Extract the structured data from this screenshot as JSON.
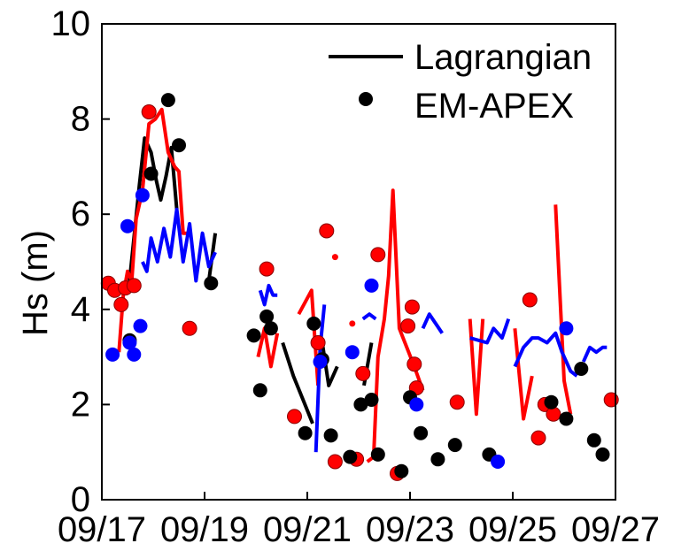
{
  "chart_data": {
    "type": "line",
    "title": "",
    "xlabel": "",
    "ylabel": "Hs (m)",
    "xlim": [
      "09/17",
      "09/27"
    ],
    "ylim": [
      0,
      10
    ],
    "x_ticks": [
      "09/17",
      "09/19",
      "09/21",
      "09/23",
      "09/25",
      "09/27"
    ],
    "y_ticks": [
      "0",
      "2",
      "4",
      "6",
      "8",
      "10"
    ],
    "grid": false,
    "legend_position": "top-right",
    "legend": [
      {
        "label": "Lagrangian",
        "marker": "line",
        "color": "#000000"
      },
      {
        "label": "EM-APEX",
        "marker": "dot",
        "color": "#000000"
      }
    ],
    "colors": {
      "black": "#000000",
      "red": "#ff0000",
      "blue": "#0000ff"
    },
    "lines": [
      {
        "color": "black",
        "points": [
          [
            "09/17 12:30",
            4.4
          ],
          [
            "09/17 17:30",
            6.6
          ],
          [
            "09/17 20:00",
            7.6
          ],
          [
            "09/17 23:00",
            7.3
          ],
          [
            "09/18 01:30",
            6.7
          ],
          [
            "09/18 03:30",
            6.3
          ],
          [
            "09/18 06:00",
            6.8
          ],
          [
            "09/18 08:30",
            7.4
          ],
          [
            "09/18 11:00",
            6.1
          ]
        ]
      },
      {
        "color": "black",
        "points": [
          [
            "09/19 02:00",
            4.6
          ],
          [
            "09/19 05:00",
            5.6
          ]
        ]
      },
      {
        "color": "black",
        "points": [
          [
            "09/20 12:30",
            3.3
          ],
          [
            "09/20 17:30",
            2.6
          ],
          [
            "09/20 22:00",
            2.1
          ],
          [
            "09/21 02:30",
            1.6
          ]
        ]
      },
      {
        "color": "black",
        "points": [
          [
            "09/21 07:00",
            3.3
          ],
          [
            "09/21 10:00",
            2.4
          ],
          [
            "09/21 14:00",
            2.8
          ]
        ]
      },
      {
        "color": "black",
        "points": [
          [
            "09/22 02:30",
            2.4
          ],
          [
            "09/22 06:00",
            3.3
          ]
        ]
      },
      {
        "color": "red",
        "points": [
          [
            "09/17 08:00",
            3.1
          ],
          [
            "09/17 10:00",
            4.3
          ],
          [
            "09/17 12:00",
            4.8
          ],
          [
            "09/17 14:00",
            4.6
          ],
          [
            "09/17 16:00",
            5.9
          ],
          [
            "09/17 19:00",
            6.5
          ],
          [
            "09/17 22:00",
            7.9
          ],
          [
            "09/18 01:00",
            8.0
          ],
          [
            "09/18 04:00",
            8.2
          ],
          [
            "09/18 07:00",
            7.3
          ],
          [
            "09/18 10:00",
            7.0
          ],
          [
            "09/18 12:00",
            6.9
          ],
          [
            "09/18 14:00",
            5.6
          ],
          [
            "09/18 17:00",
            5.6
          ]
        ]
      },
      {
        "color": "red",
        "points": [
          [
            "09/20 01:00",
            3.0
          ],
          [
            "09/20 04:00",
            3.6
          ],
          [
            "09/20 07:00",
            2.8
          ],
          [
            "09/20 10:00",
            3.5
          ]
        ]
      },
      {
        "color": "red",
        "points": [
          [
            "09/20 20:00",
            3.9
          ],
          [
            "09/21 02:00",
            4.4
          ],
          [
            "09/21 05:00",
            2.4
          ]
        ]
      },
      {
        "color": "red",
        "points": [
          [
            "09/22 04:00",
            0.8
          ],
          [
            "09/22 07:00",
            0.9
          ],
          [
            "09/22 09:00",
            3.0
          ],
          [
            "09/22 12:00",
            3.8
          ],
          [
            "09/22 14:00",
            4.7
          ],
          [
            "09/22 16:00",
            6.5
          ],
          [
            "09/22 19:00",
            3.6
          ],
          [
            "09/23 02:00",
            2.8
          ],
          [
            "09/23 06:00",
            2.3
          ]
        ]
      },
      {
        "color": "red",
        "points": [
          [
            "09/24 04:00",
            3.8
          ],
          [
            "09/24 07:00",
            1.8
          ],
          [
            "09/24 10:00",
            3.8
          ]
        ]
      },
      {
        "color": "red",
        "points": [
          [
            "09/25 01:00",
            3.6
          ],
          [
            "09/25 05:00",
            1.7
          ],
          [
            "09/25 09:00",
            2.6
          ]
        ]
      },
      {
        "color": "red",
        "points": [
          [
            "09/25 20:00",
            6.2
          ],
          [
            "09/26 00:00",
            2.5
          ],
          [
            "09/26 03:00",
            1.8
          ]
        ]
      },
      {
        "color": "blue",
        "points": [
          [
            "09/17 19:00",
            5.0
          ],
          [
            "09/17 21:00",
            4.8
          ],
          [
            "09/17 23:00",
            5.5
          ],
          [
            "09/18 02:00",
            5.0
          ],
          [
            "09/18 05:00",
            5.7
          ],
          [
            "09/18 08:00",
            5.1
          ],
          [
            "09/18 11:00",
            6.1
          ],
          [
            "09/18 14:00",
            5.0
          ],
          [
            "09/18 17:00",
            5.8
          ],
          [
            "09/18 20:00",
            4.6
          ],
          [
            "09/18 23:00",
            5.6
          ],
          [
            "09/19 02:00",
            4.9
          ],
          [
            "09/19 05:00",
            5.2
          ]
        ]
      },
      {
        "color": "blue",
        "points": [
          [
            "09/20 02:00",
            4.4
          ],
          [
            "09/20 04:00",
            4.1
          ],
          [
            "09/20 06:00",
            4.5
          ],
          [
            "09/20 08:00",
            4.3
          ],
          [
            "09/20 10:00",
            4.3
          ]
        ]
      },
      {
        "color": "blue",
        "points": [
          [
            "09/21 04:00",
            1.0
          ],
          [
            "09/21 06:00",
            3.2
          ],
          [
            "09/21 08:00",
            4.1
          ]
        ]
      },
      {
        "color": "blue",
        "points": [
          [
            "09/22 02:00",
            3.8
          ],
          [
            "09/22 05:00",
            3.9
          ],
          [
            "09/22 08:00",
            3.8
          ]
        ]
      },
      {
        "color": "blue",
        "points": [
          [
            "09/23 06:00",
            3.6
          ],
          [
            "09/23 09:00",
            3.9
          ],
          [
            "09/23 12:00",
            3.7
          ],
          [
            "09/23 15:00",
            3.5
          ]
        ]
      },
      {
        "color": "blue",
        "points": [
          [
            "09/24 04:00",
            3.4
          ],
          [
            "09/24 12:00",
            3.3
          ],
          [
            "09/24 15:00",
            3.6
          ],
          [
            "09/24 19:00",
            3.4
          ],
          [
            "09/24 22:00",
            3.8
          ]
        ]
      },
      {
        "color": "blue",
        "points": [
          [
            "09/25 01:00",
            2.8
          ],
          [
            "09/25 05:00",
            3.2
          ],
          [
            "09/25 09:00",
            3.4
          ],
          [
            "09/25 12:00",
            3.4
          ],
          [
            "09/25 16:00",
            3.3
          ],
          [
            "09/25 20:00",
            3.5
          ],
          [
            "09/25 23:00",
            3.1
          ],
          [
            "09/26 03:00",
            2.7
          ],
          [
            "09/26 06:00",
            2.6
          ]
        ]
      },
      {
        "color": "blue",
        "points": [
          [
            "09/26 09:00",
            2.9
          ],
          [
            "09/26 12:00",
            3.2
          ],
          [
            "09/26 15:00",
            3.1
          ],
          [
            "09/26 18:00",
            3.2
          ],
          [
            "09/26 20:00",
            3.2
          ]
        ]
      }
    ],
    "dots": [
      {
        "color": "red",
        "x": "09/17 03:00",
        "y": 4.55
      },
      {
        "color": "red",
        "x": "09/17 06:00",
        "y": 4.4
      },
      {
        "color": "red",
        "x": "09/17 09:00",
        "y": 4.1
      },
      {
        "color": "red",
        "x": "09/17 11:00",
        "y": 4.45
      },
      {
        "color": "red",
        "x": "09/17 15:00",
        "y": 4.5
      },
      {
        "color": "red",
        "x": "09/17 22:00",
        "y": 8.15
      },
      {
        "color": "red",
        "x": "09/18 17:00",
        "y": 3.6
      },
      {
        "color": "red",
        "x": "09/20 05:00",
        "y": 4.85
      },
      {
        "color": "red",
        "x": "09/20 18:00",
        "y": 1.75
      },
      {
        "color": "red",
        "x": "09/21 05:00",
        "y": 3.3
      },
      {
        "color": "red",
        "x": "09/21 09:00",
        "y": 5.65
      },
      {
        "color": "red",
        "x": "09/21 13:00",
        "y": 0.8
      },
      {
        "color": "red",
        "x": "09/21 23:00",
        "y": 0.85
      },
      {
        "color": "red",
        "x": "09/22 02:00",
        "y": 2.65
      },
      {
        "color": "red",
        "x": "09/22 09:00",
        "y": 5.15
      },
      {
        "color": "red",
        "x": "09/22 18:00",
        "y": 0.55
      },
      {
        "color": "red",
        "x": "09/22 23:00",
        "y": 3.65
      },
      {
        "color": "red",
        "x": "09/23 01:00",
        "y": 4.05
      },
      {
        "color": "red",
        "x": "09/23 02:00",
        "y": 2.85
      },
      {
        "color": "red",
        "x": "09/23 03:00",
        "y": 2.35
      },
      {
        "color": "red",
        "x": "09/23 22:00",
        "y": 2.05
      },
      {
        "color": "red",
        "x": "09/25 08:00",
        "y": 4.2
      },
      {
        "color": "red",
        "x": "09/25 12:00",
        "y": 1.3
      },
      {
        "color": "red",
        "x": "09/25 15:00",
        "y": 2.0
      },
      {
        "color": "red",
        "x": "09/25 19:00",
        "y": 1.8
      },
      {
        "color": "red",
        "x": "09/26 22:00",
        "y": 2.1
      },
      {
        "color": "black",
        "x": "09/17 13:00",
        "y": 3.35
      },
      {
        "color": "black",
        "x": "09/17 23:00",
        "y": 6.85
      },
      {
        "color": "black",
        "x": "09/18 07:00",
        "y": 8.4
      },
      {
        "color": "black",
        "x": "09/18 12:00",
        "y": 7.45
      },
      {
        "color": "black",
        "x": "09/19 03:00",
        "y": 4.55
      },
      {
        "color": "black",
        "x": "09/19 23:00",
        "y": 3.45
      },
      {
        "color": "black",
        "x": "09/20 02:00",
        "y": 2.3
      },
      {
        "color": "black",
        "x": "09/20 05:00",
        "y": 3.85
      },
      {
        "color": "black",
        "x": "09/20 07:00",
        "y": 3.6
      },
      {
        "color": "black",
        "x": "09/20 23:00",
        "y": 1.4
      },
      {
        "color": "black",
        "x": "09/21 03:00",
        "y": 3.7
      },
      {
        "color": "black",
        "x": "09/21 07:00",
        "y": 2.95
      },
      {
        "color": "black",
        "x": "09/21 11:00",
        "y": 1.35
      },
      {
        "color": "black",
        "x": "09/21 20:00",
        "y": 0.9
      },
      {
        "color": "black",
        "x": "09/22 01:00",
        "y": 2.0
      },
      {
        "color": "black",
        "x": "09/22 06:00",
        "y": 2.1
      },
      {
        "color": "black",
        "x": "09/22 09:00",
        "y": 0.95
      },
      {
        "color": "black",
        "x": "09/22 20:00",
        "y": 0.6
      },
      {
        "color": "black",
        "x": "09/23 00:00",
        "y": 2.15
      },
      {
        "color": "black",
        "x": "09/23 05:00",
        "y": 1.4
      },
      {
        "color": "black",
        "x": "09/23 13:00",
        "y": 0.85
      },
      {
        "color": "black",
        "x": "09/23 21:00",
        "y": 1.15
      },
      {
        "color": "black",
        "x": "09/24 13:00",
        "y": 0.95
      },
      {
        "color": "black",
        "x": "09/25 18:00",
        "y": 2.05
      },
      {
        "color": "black",
        "x": "09/26 01:00",
        "y": 1.7
      },
      {
        "color": "black",
        "x": "09/26 08:00",
        "y": 2.75
      },
      {
        "color": "black",
        "x": "09/26 14:00",
        "y": 1.25
      },
      {
        "color": "black",
        "x": "09/26 18:00",
        "y": 0.95
      },
      {
        "color": "blue",
        "x": "09/17 05:00",
        "y": 3.05
      },
      {
        "color": "blue",
        "x": "09/17 12:00",
        "y": 5.75
      },
      {
        "color": "blue",
        "x": "09/17 13:00",
        "y": 3.3
      },
      {
        "color": "blue",
        "x": "09/17 15:00",
        "y": 3.05
      },
      {
        "color": "blue",
        "x": "09/17 18:00",
        "y": 3.65
      },
      {
        "color": "blue",
        "x": "09/17 19:00",
        "y": 6.4
      },
      {
        "color": "blue",
        "x": "09/21 06:00",
        "y": 2.9
      },
      {
        "color": "blue",
        "x": "09/21 21:00",
        "y": 3.1
      },
      {
        "color": "blue",
        "x": "09/22 06:00",
        "y": 4.5
      },
      {
        "color": "blue",
        "x": "09/23 03:00",
        "y": 2.0
      },
      {
        "color": "blue",
        "x": "09/24 17:00",
        "y": 0.8
      },
      {
        "color": "blue",
        "x": "09/26 01:00",
        "y": 3.6
      }
    ],
    "small_dots": [
      {
        "color": "red",
        "x": "09/21 13:00",
        "y": 5.1
      },
      {
        "color": "red",
        "x": "09/21 21:00",
        "y": 3.7
      }
    ]
  }
}
